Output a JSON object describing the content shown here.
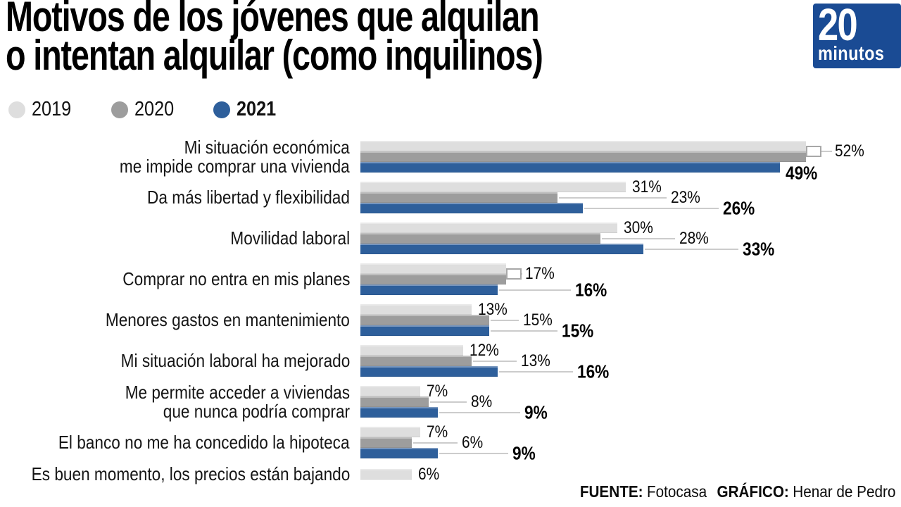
{
  "title": {
    "line1": "Motivos de los jóvenes que alquilan",
    "line2": "o intentan alquilar (como inquilinos)"
  },
  "logo": {
    "number": "20",
    "word": "minutos"
  },
  "legend": {
    "items": [
      {
        "label": "2019",
        "color": "#dedede"
      },
      {
        "label": "2020",
        "color": "#9d9d9d"
      },
      {
        "label": "2021",
        "color": "#2e5f9b"
      }
    ]
  },
  "colors": {
    "bar_2019": "#dedede",
    "bar_2020": "#9d9d9d",
    "bar_2021": "#2e5f9b",
    "logo_blue": "#1a4b94",
    "leader_line": "#cccccc",
    "text": "#000000"
  },
  "chart_data": {
    "type": "bar",
    "orientation": "horizontal",
    "unit": "%",
    "title": "Motivos de los jóvenes que alquilan o intentan alquilar (como inquilinos)",
    "legend_position": "top-left",
    "grid": false,
    "xlim": [
      0,
      55
    ],
    "categories": [
      [
        "Mi situación económica",
        "me impide comprar una vivienda"
      ],
      [
        "Da más libertad y flexibilidad"
      ],
      [
        "Movilidad laboral"
      ],
      [
        "Comprar no entra en mis planes"
      ],
      [
        "Menores gastos en mantenimiento"
      ],
      [
        "Mi situación laboral ha mejorado"
      ],
      [
        "Me permite acceder a viviendas",
        "que nunca podría comprar"
      ],
      [
        "El banco no me ha concedido la hipoteca"
      ],
      [
        "Es buen momento, los precios están bajando"
      ]
    ],
    "series": [
      {
        "name": "2019",
        "values": [
          52,
          31,
          30,
          17,
          13,
          12,
          7,
          7,
          6
        ]
      },
      {
        "name": "2020",
        "values": [
          52,
          23,
          28,
          17,
          15,
          13,
          8,
          6,
          null
        ]
      },
      {
        "name": "2021",
        "values": [
          49,
          26,
          33,
          16,
          15,
          16,
          9,
          9,
          null
        ]
      }
    ],
    "notes": "En las filas 1 y 4 los valores de 2019 y 2020 son iguales y comparten una sola etiqueta unida por un corchete."
  },
  "footer": {
    "source_label": "FUENTE:",
    "source_value": "Fotocasa",
    "credit_label": "GRÁFICO:",
    "credit_value": "Henar de Pedro"
  }
}
